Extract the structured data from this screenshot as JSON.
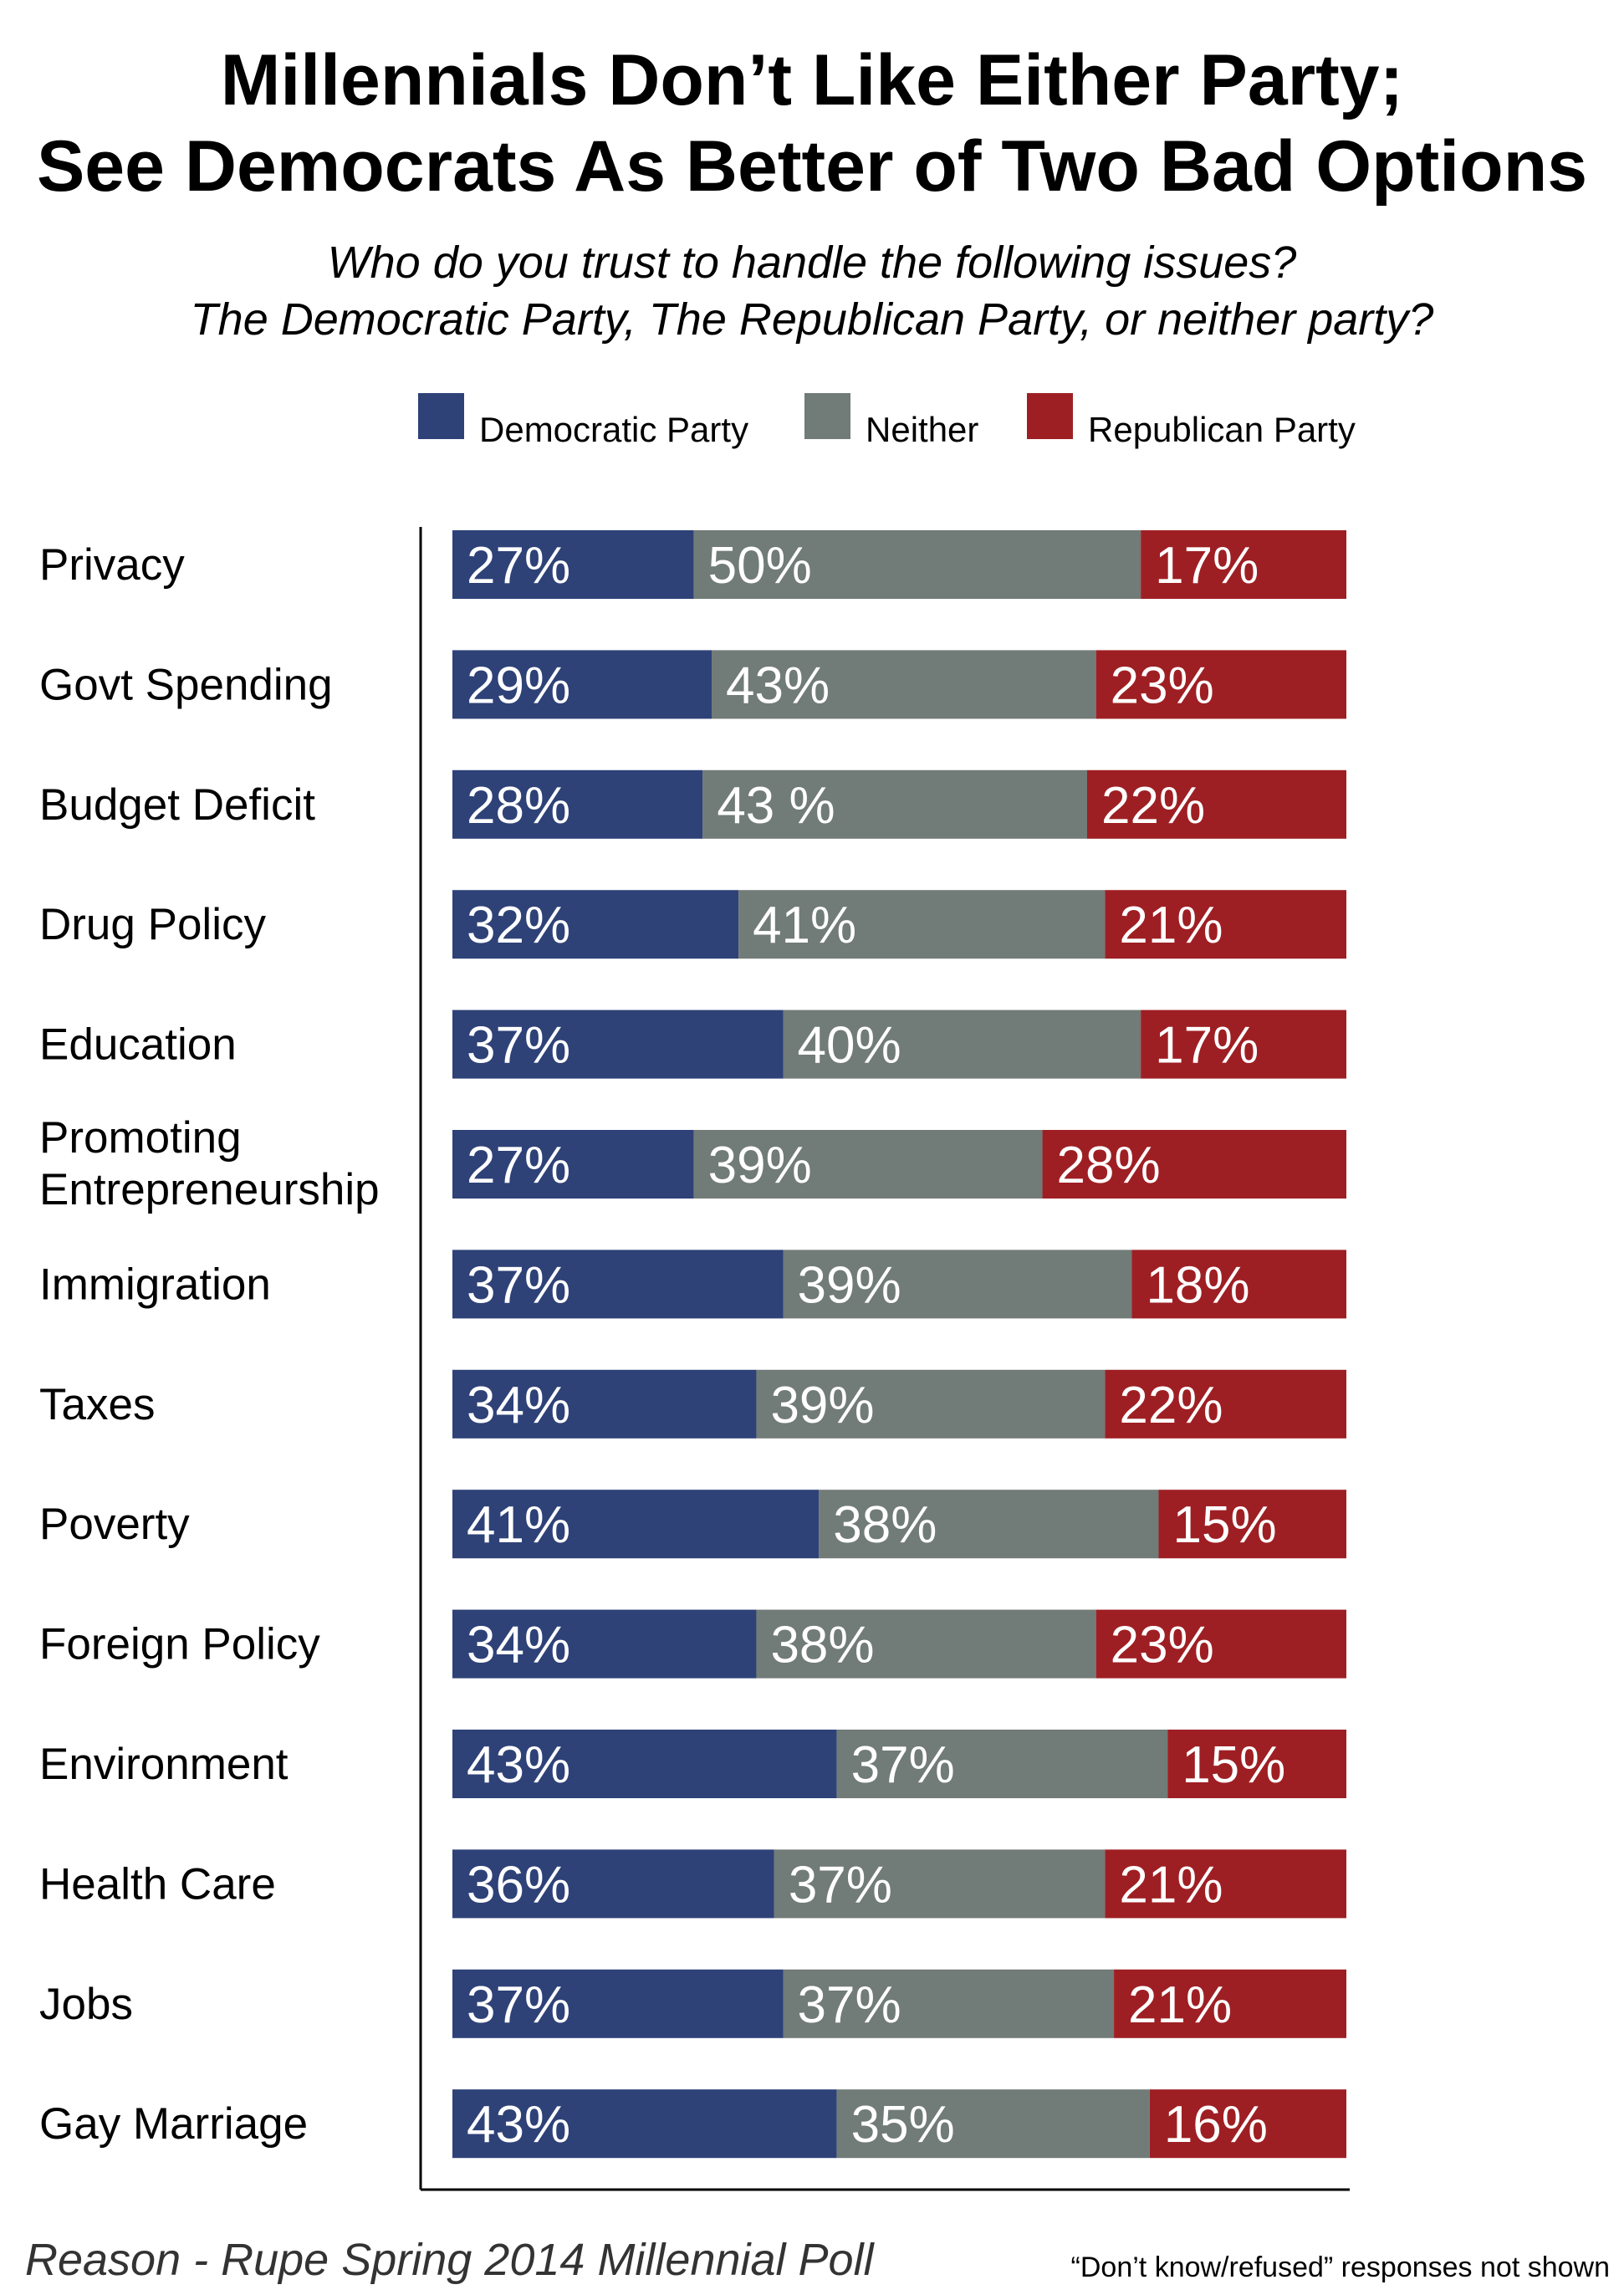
{
  "chart_data": {
    "type": "bar",
    "orientation": "horizontal",
    "stacked": true,
    "title_lines": [
      "Millennials Don’t Like Either Party;",
      "See Democrats As Better of Two Bad Options"
    ],
    "subtitle_lines": [
      "Who do you trust to handle the following issues?",
      "The Democratic Party, The Republican Party, or neither party?"
    ],
    "categories": [
      "Privacy",
      "Govt Spending",
      "Budget Deficit",
      "Drug Policy",
      "Education",
      "Promoting Entrepreneurship",
      "Immigration",
      "Taxes",
      "Poverty",
      "Foreign Policy",
      "Environment",
      "Health Care",
      "Jobs",
      "Gay Marriage"
    ],
    "category_lines": [
      [
        "Privacy"
      ],
      [
        "Govt Spending"
      ],
      [
        "Budget Deficit"
      ],
      [
        "Drug Policy"
      ],
      [
        "Education"
      ],
      [
        "Promoting",
        "Entrepreneurship"
      ],
      [
        "Immigration"
      ],
      [
        "Taxes"
      ],
      [
        "Poverty"
      ],
      [
        "Foreign Policy"
      ],
      [
        "Environment"
      ],
      [
        "Health Care"
      ],
      [
        "Jobs"
      ],
      [
        "Gay Marriage"
      ]
    ],
    "series": [
      {
        "name": "Democratic Party",
        "color": "#2e4278",
        "values": [
          27,
          29,
          28,
          32,
          37,
          27,
          37,
          34,
          41,
          34,
          43,
          36,
          37,
          43
        ],
        "labels": [
          "27%",
          "29%",
          "28%",
          "32%",
          "37%",
          "27%",
          "37%",
          "34%",
          "41%",
          "34%",
          "43%",
          "36%",
          "37%",
          "43%"
        ]
      },
      {
        "name": "Neither",
        "color": "#717b78",
        "values": [
          50,
          43,
          43,
          41,
          40,
          39,
          39,
          39,
          38,
          38,
          37,
          37,
          37,
          35
        ],
        "labels": [
          "50%",
          "43%",
          "43 %",
          "41%",
          "40%",
          "39%",
          "39%",
          "39%",
          "38%",
          "38%",
          "37%",
          "37%",
          "37%",
          "35%"
        ]
      },
      {
        "name": "Republican Party",
        "color": "#9e1f23",
        "values": [
          17,
          23,
          22,
          21,
          17,
          28,
          18,
          22,
          15,
          23,
          15,
          21,
          21,
          16
        ],
        "labels": [
          "17%",
          "23%",
          "22%",
          "21%",
          "17%",
          "28%",
          "18%",
          "22%",
          "15%",
          "23%",
          "15%",
          "21%",
          "21%",
          "16%"
        ]
      }
    ],
    "xlim": [
      0,
      100
    ],
    "grid": false,
    "legend_position": "top",
    "source": "Reason - Rupe Spring 2014 Millennial Poll",
    "note": "“Don’t know/refused” responses not shown"
  }
}
